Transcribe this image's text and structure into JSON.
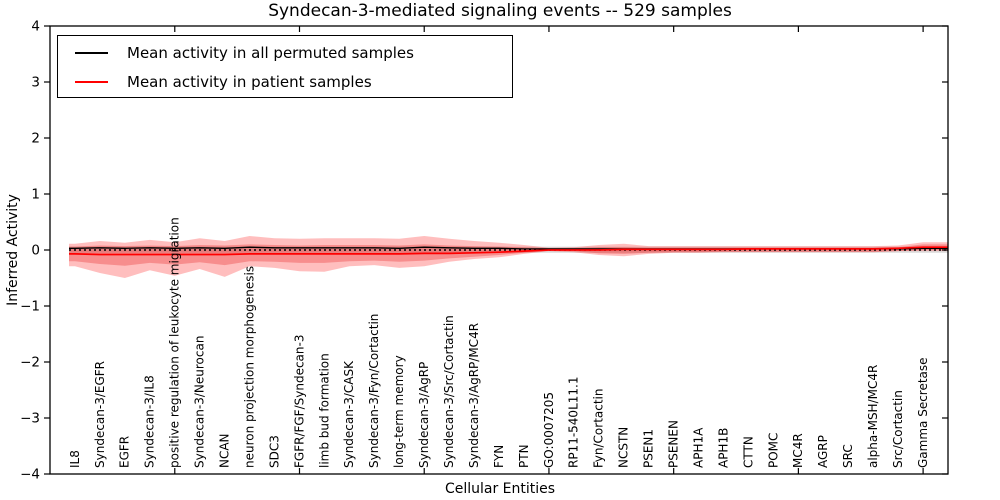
{
  "title": "Syndecan-3-mediated signaling events -- 529 samples",
  "axes": {
    "x_label": "Cellular Entities",
    "y_label": "Inferred Activity",
    "y_tick_labels": [
      "4",
      "3",
      "2",
      "1",
      "0",
      "−1",
      "−2",
      "−3",
      "−4"
    ]
  },
  "legend": {
    "items": [
      {
        "label": "Mean activity in all permuted samples",
        "color": "#000000"
      },
      {
        "label": "Mean activity in patient samples",
        "color": "#ff0000"
      }
    ]
  },
  "chart_data": {
    "type": "line",
    "title": "Syndecan-3-mediated signaling events -- 529 samples",
    "xlabel": "Cellular Entities",
    "ylabel": "Inferred Activity",
    "ylim": [
      -4,
      4
    ],
    "grid": false,
    "legend_position": "upper left",
    "x_major_tick_indices": [
      4,
      9,
      14,
      19,
      24,
      29,
      34
    ],
    "categories": [
      "IL8",
      "Syndecan-3/EGFR",
      "EGFR",
      "Syndecan-3/IL8",
      "positive regulation of leukocyte migration",
      "Syndecan-3/Neurocan",
      "NCAN",
      "neuron projection morphogenesis",
      "SDC3",
      "FGFR/FGF/Syndecan-3",
      "limb bud formation",
      "Syndecan-3/CASK",
      "Syndecan-3/Fyn/Cortactin",
      "long-term memory",
      "Syndecan-3/AgRP",
      "Syndecan-3/Src/Cortactin",
      "Syndecan-3/AgRP/MC4R",
      "FYN",
      "PTN",
      "GO:0007205",
      "RP11-540L11.1",
      "Fyn/Cortactin",
      "NCSTN",
      "PSEN1",
      "PSENEN",
      "APH1A",
      "APH1B",
      "CTTN",
      "POMC",
      "MC4R",
      "AGRP",
      "SRC",
      "alpha-MSH/MC4R",
      "Src/Cortactin",
      "Gamma Secretase"
    ],
    "series": [
      {
        "name": "Mean activity in all permuted samples",
        "color": "#000000",
        "line_style": "solid",
        "values": [
          0.03,
          0.04,
          0.03,
          0.04,
          0.03,
          0.04,
          0.03,
          0.05,
          0.04,
          0.04,
          0.04,
          0.04,
          0.04,
          0.03,
          0.05,
          0.04,
          0.03,
          0.03,
          0.02,
          0.02,
          0.02,
          0.02,
          0.02,
          0.02,
          0.02,
          0.02,
          0.02,
          0.02,
          0.02,
          0.02,
          0.02,
          0.02,
          0.02,
          0.02,
          0.03
        ]
      },
      {
        "name": "Mean activity in patient samples",
        "color": "#ff0000",
        "line_style": "solid",
        "values": [
          -0.07,
          -0.08,
          -0.08,
          -0.08,
          -0.08,
          -0.08,
          -0.08,
          -0.07,
          -0.07,
          -0.07,
          -0.07,
          -0.07,
          -0.07,
          -0.07,
          -0.06,
          -0.06,
          -0.05,
          -0.04,
          -0.02,
          0.0,
          0.0,
          0.0,
          0.01,
          0.01,
          0.01,
          0.01,
          0.01,
          0.02,
          0.02,
          0.02,
          0.02,
          0.02,
          0.02,
          0.03,
          0.05
        ]
      }
    ],
    "reference_line": {
      "y": 0.0,
      "style": "dotted",
      "color": "#000000"
    },
    "bands": [
      {
        "name": "patient activity spread (outer)",
        "color": "rgba(255,40,40,0.30)",
        "upper": [
          0.11,
          0.16,
          0.13,
          0.18,
          0.14,
          0.21,
          0.16,
          0.25,
          0.21,
          0.2,
          0.21,
          0.21,
          0.21,
          0.2,
          0.25,
          0.2,
          0.16,
          0.13,
          0.09,
          0.04,
          0.05,
          0.09,
          0.11,
          0.07,
          0.07,
          0.07,
          0.07,
          0.07,
          0.07,
          0.07,
          0.07,
          0.07,
          0.07,
          0.08,
          0.14
        ],
        "lower": [
          -0.29,
          -0.41,
          -0.5,
          -0.36,
          -0.46,
          -0.34,
          -0.48,
          -0.29,
          -0.32,
          -0.38,
          -0.39,
          -0.29,
          -0.27,
          -0.32,
          -0.29,
          -0.21,
          -0.16,
          -0.13,
          -0.07,
          -0.02,
          -0.04,
          -0.09,
          -0.11,
          -0.07,
          -0.05,
          -0.05,
          -0.04,
          -0.04,
          -0.04,
          -0.04,
          -0.04,
          -0.04,
          -0.04,
          -0.02,
          -0.02
        ]
      },
      {
        "name": "patient activity spread (inner)",
        "color": "rgba(230,30,30,0.30)",
        "upper": [
          0.06,
          0.08,
          0.07,
          0.08,
          0.07,
          0.09,
          0.08,
          0.1,
          0.09,
          0.08,
          0.09,
          0.09,
          0.09,
          0.08,
          0.1,
          0.08,
          0.07,
          0.06,
          0.05,
          0.03,
          0.03,
          0.05,
          0.05,
          0.04,
          0.04,
          0.04,
          0.04,
          0.04,
          0.04,
          0.04,
          0.04,
          0.04,
          0.04,
          0.05,
          0.1
        ],
        "lower": [
          -0.2,
          -0.25,
          -0.28,
          -0.23,
          -0.26,
          -0.22,
          -0.27,
          -0.2,
          -0.21,
          -0.23,
          -0.23,
          -0.2,
          -0.19,
          -0.21,
          -0.19,
          -0.15,
          -0.12,
          -0.09,
          -0.05,
          -0.01,
          -0.02,
          -0.06,
          -0.07,
          -0.05,
          -0.04,
          -0.04,
          -0.03,
          -0.03,
          -0.03,
          -0.03,
          -0.03,
          -0.03,
          -0.03,
          -0.02,
          0.0
        ]
      },
      {
        "name": "permuted activity spread",
        "color": "#dcdcdc",
        "upper": 0.06,
        "lower": -0.05
      }
    ]
  }
}
